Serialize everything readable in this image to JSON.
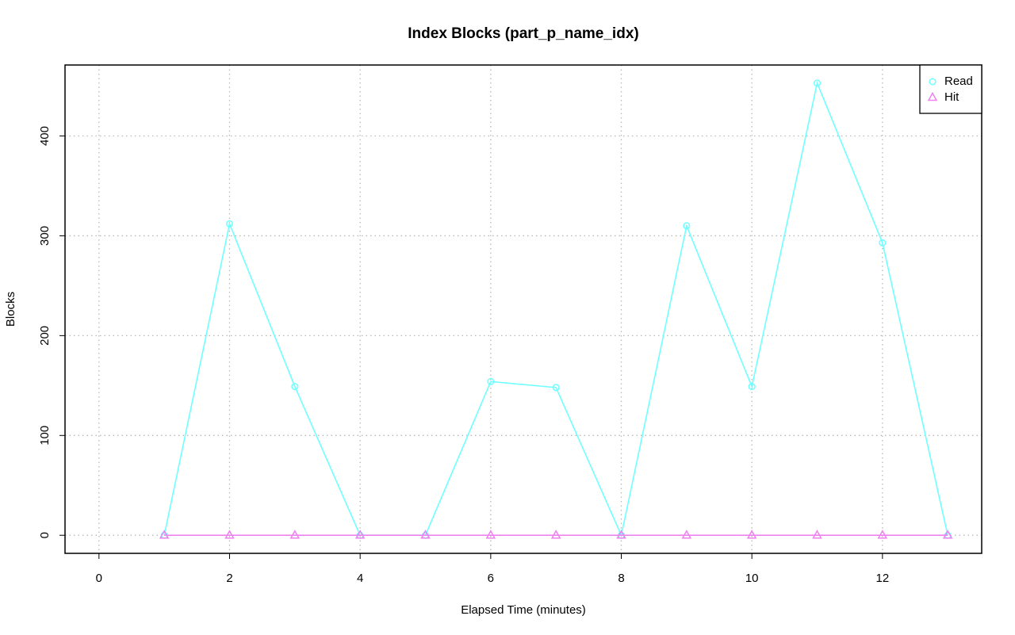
{
  "chart_data": {
    "type": "line",
    "title": "Index Blocks (part_p_name_idx)",
    "x_label": "Elapsed Time (minutes)",
    "y_label": "Blocks",
    "x": [
      1,
      2,
      3,
      4,
      5,
      6,
      7,
      8,
      9,
      10,
      11,
      12,
      13
    ],
    "series": [
      {
        "name": "Read",
        "color": "#70ffff",
        "marker": "circle",
        "values": [
          0,
          312,
          149,
          0,
          0,
          154,
          148,
          0,
          310,
          149,
          453,
          293,
          0
        ]
      },
      {
        "name": "Hit",
        "color": "#ee82ee",
        "marker": "triangle",
        "values": [
          0,
          0,
          0,
          0,
          0,
          0,
          0,
          0,
          0,
          0,
          0,
          0,
          0
        ]
      }
    ],
    "xlim": [
      -0.52,
      13.52
    ],
    "xticks": [
      0,
      2,
      4,
      6,
      8,
      10,
      12
    ],
    "ylim": [
      -18.1,
      471.1
    ],
    "yticks": [
      0,
      100,
      200,
      300,
      400
    ],
    "grid": true,
    "legend": "top-right"
  }
}
